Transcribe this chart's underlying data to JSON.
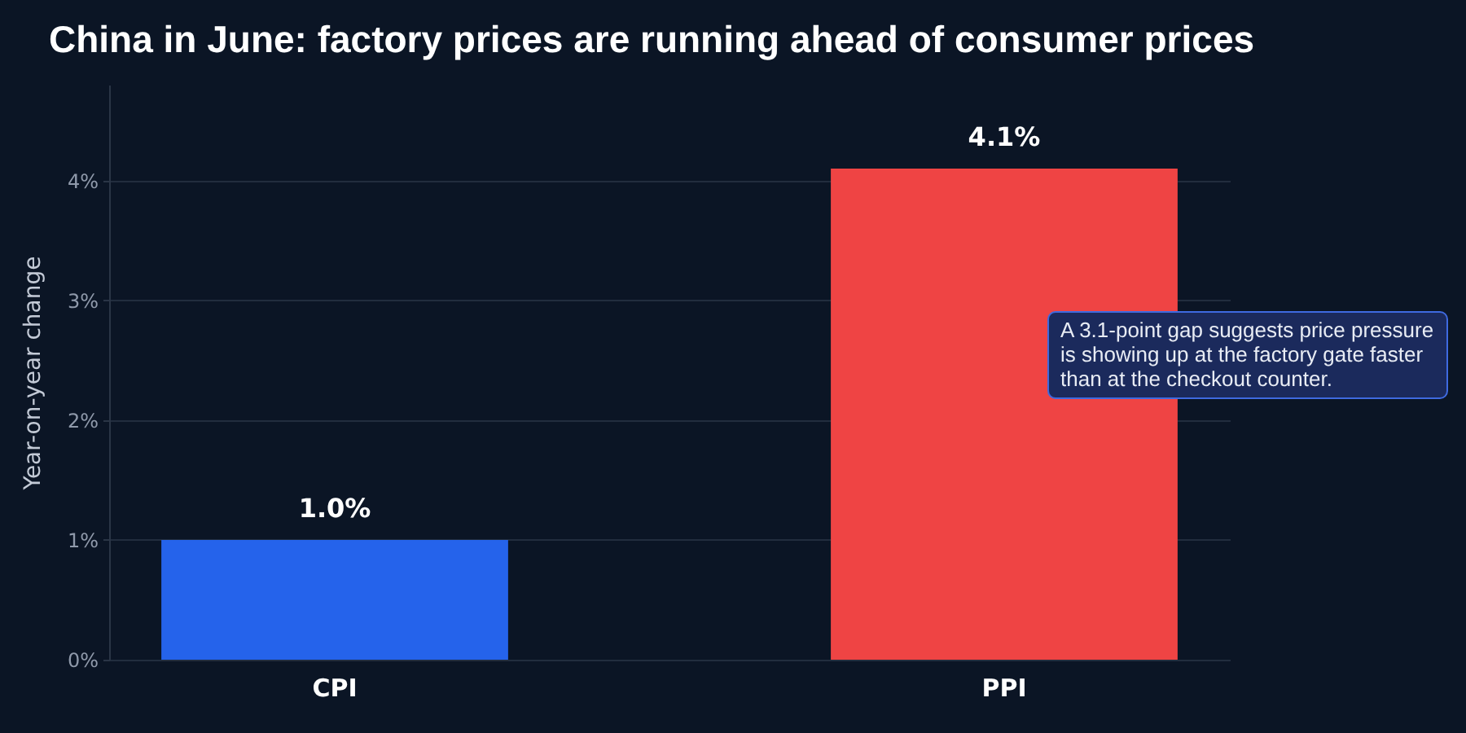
{
  "chart_data": {
    "type": "bar",
    "title": "China in June: factory prices are running ahead of consumer prices",
    "ylabel": "Year-on-year change",
    "categories": [
      "CPI",
      "PPI"
    ],
    "values": [
      1.0,
      4.1
    ],
    "colors": [
      "#2563eb",
      "#ef4444"
    ],
    "value_labels": [
      "1.0%",
      "4.1%"
    ],
    "ylim": [
      0,
      4.8
    ],
    "yticks": [
      {
        "value": 0,
        "label": "0%"
      },
      {
        "value": 1,
        "label": "1%"
      },
      {
        "value": 2,
        "label": "2%"
      },
      {
        "value": 3,
        "label": "3%"
      },
      {
        "value": 4,
        "label": "4%"
      }
    ],
    "grid": "y",
    "annotations": [
      "A 3.1-point gap suggests price pressure is showing up at the factory gate faster than at the checkout counter."
    ]
  }
}
